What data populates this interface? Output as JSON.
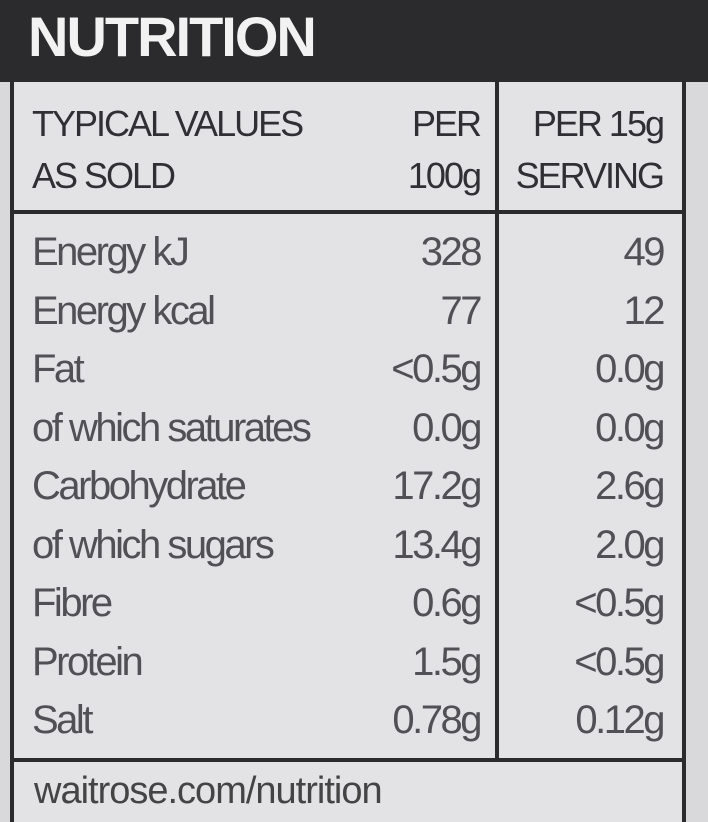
{
  "title": "NUTRITION",
  "table": {
    "header": [
      [
        "TYPICAL VALUES",
        "AS SOLD"
      ],
      [
        "PER",
        "100g"
      ],
      [
        "PER 15g",
        "SERVING"
      ]
    ],
    "rows": [
      [
        "Energy kJ",
        "328",
        "49"
      ],
      [
        "Energy kcal",
        "77",
        "12"
      ],
      [
        "Fat",
        "<0.5g",
        "0.0g"
      ],
      [
        "of which saturates",
        "0.0g",
        "0.0g"
      ],
      [
        "Carbohydrate",
        "17.2g",
        "2.6g"
      ],
      [
        "of which sugars",
        "13.4g",
        "2.0g"
      ],
      [
        "Fibre",
        "0.6g",
        "<0.5g"
      ],
      [
        "Protein",
        "1.5g",
        "<0.5g"
      ],
      [
        "Salt",
        "0.78g",
        "0.12g"
      ]
    ]
  },
  "footer": "waitrose.com/nutrition"
}
